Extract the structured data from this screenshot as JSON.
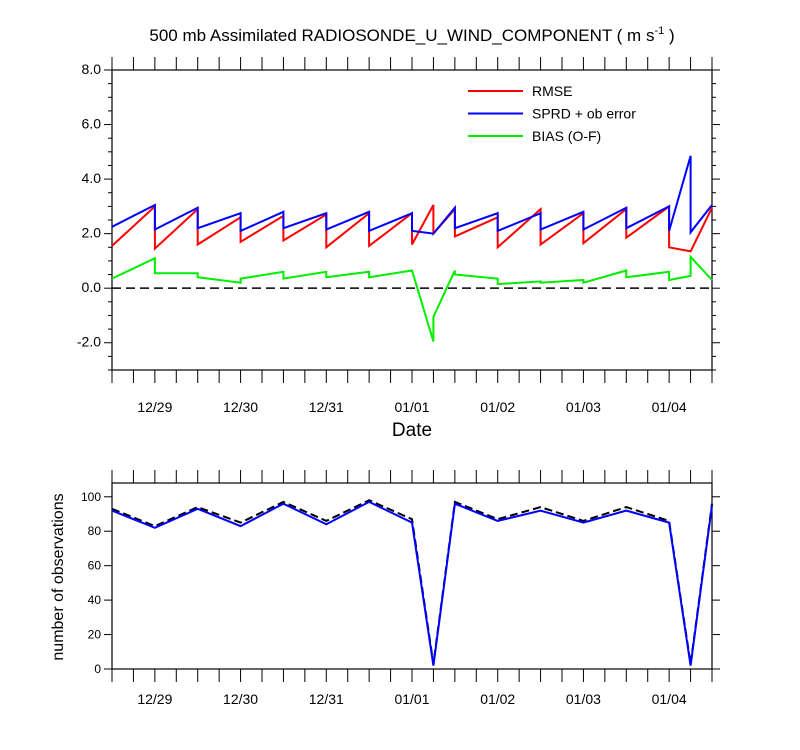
{
  "chart_data": [
    {
      "type": "line",
      "title": "500 mb Assimilated RADIOSONDE_U_WIND_COMPONENT ( m s",
      "title_superscript": "-1",
      "title_close": " )",
      "xlabel": "Date",
      "ylabel": "",
      "ylim": [
        -3,
        8
      ],
      "yticks": [
        -2,
        0,
        2,
        4,
        6,
        8
      ],
      "ytick_labels": [
        "-2.0",
        "0.0",
        "2.0",
        "4.0",
        "6.0",
        "8.0"
      ],
      "xlim": [
        0,
        28
      ],
      "xticks": [
        2,
        6,
        10,
        14,
        18,
        22,
        26
      ],
      "xtick_labels": [
        "12/29",
        "12/30",
        "12/31",
        "01/01",
        "01/02",
        "01/03",
        "01/04"
      ],
      "zero_line": true,
      "legend_position": "top-right",
      "series": [
        {
          "name": "RMSE",
          "color": "#ff0000",
          "x": [
            0,
            2,
            2,
            4,
            4,
            6,
            6,
            8,
            8,
            10,
            10,
            12,
            12,
            14,
            14,
            15,
            15,
            16,
            16,
            18,
            18,
            20,
            20,
            22,
            22,
            24,
            24,
            26,
            26,
            27,
            27,
            28
          ],
          "y": [
            1.55,
            3.0,
            1.45,
            2.9,
            1.6,
            2.6,
            1.7,
            2.65,
            1.75,
            2.7,
            1.5,
            2.75,
            1.55,
            2.75,
            1.6,
            3.05,
            2.0,
            2.9,
            1.9,
            2.6,
            1.5,
            2.9,
            1.6,
            2.75,
            1.65,
            2.9,
            1.85,
            3.0,
            1.5,
            1.35,
            1.35,
            2.95
          ]
        },
        {
          "name": "SPRD + ob error",
          "color": "#0000ff",
          "x": [
            0,
            2,
            2,
            4,
            4,
            6,
            6,
            8,
            8,
            10,
            10,
            12,
            12,
            14,
            14,
            15,
            15,
            16,
            16,
            18,
            18,
            20,
            20,
            22,
            22,
            24,
            24,
            26,
            26,
            27,
            27,
            28
          ],
          "y": [
            2.25,
            3.05,
            2.15,
            2.95,
            2.2,
            2.75,
            2.1,
            2.8,
            2.2,
            2.75,
            2.15,
            2.8,
            2.1,
            2.75,
            2.1,
            2.0,
            2.0,
            2.95,
            2.2,
            2.75,
            2.1,
            2.75,
            2.15,
            2.8,
            2.15,
            2.95,
            2.2,
            3.0,
            2.1,
            4.85,
            2.05,
            3.05
          ]
        },
        {
          "name": "BIAS (O-F)",
          "color": "#00ee00",
          "x": [
            0,
            2,
            2,
            4,
            4,
            6,
            6,
            8,
            8,
            10,
            10,
            12,
            12,
            14,
            14,
            15,
            15,
            16,
            16,
            18,
            18,
            20,
            20,
            22,
            22,
            24,
            24,
            26,
            26,
            27,
            27,
            28
          ],
          "y": [
            0.35,
            1.1,
            0.55,
            0.55,
            0.4,
            0.2,
            0.35,
            0.6,
            0.35,
            0.6,
            0.4,
            0.6,
            0.4,
            0.65,
            0.65,
            -1.95,
            -1.05,
            0.65,
            0.5,
            0.35,
            0.15,
            0.25,
            0.2,
            0.3,
            0.2,
            0.65,
            0.4,
            0.6,
            0.3,
            0.45,
            1.15,
            0.3
          ]
        }
      ]
    },
    {
      "type": "line",
      "title": "",
      "xlabel": "",
      "ylabel": "number of observations",
      "ylim": [
        0,
        108
      ],
      "yticks": [
        0,
        20,
        40,
        60,
        80,
        100
      ],
      "ytick_labels": [
        "0",
        "20",
        "40",
        "60",
        "80",
        "100"
      ],
      "xlim": [
        0,
        28
      ],
      "xticks": [
        2,
        6,
        10,
        14,
        18,
        22,
        26
      ],
      "xtick_labels": [
        "12/29",
        "12/30",
        "12/31",
        "01/01",
        "01/02",
        "01/03",
        "01/04"
      ],
      "series": [
        {
          "color": "#000000",
          "dashed": true,
          "x": [
            0,
            2,
            4,
            6,
            8,
            10,
            12,
            14,
            15,
            16,
            18,
            20,
            22,
            24,
            26,
            27,
            28
          ],
          "y": [
            93,
            83,
            94,
            85,
            97,
            86,
            98,
            87,
            3,
            97,
            87,
            94,
            86,
            94,
            86,
            3,
            96
          ]
        },
        {
          "color": "#0000ff",
          "dashed": false,
          "x": [
            0,
            2,
            4,
            6,
            8,
            10,
            12,
            14,
            15,
            16,
            18,
            20,
            22,
            24,
            26,
            27,
            28
          ],
          "y": [
            92,
            82,
            93,
            83,
            96,
            84,
            97,
            85,
            2,
            96,
            86,
            92,
            85,
            92,
            85,
            2,
            95
          ]
        }
      ]
    }
  ]
}
